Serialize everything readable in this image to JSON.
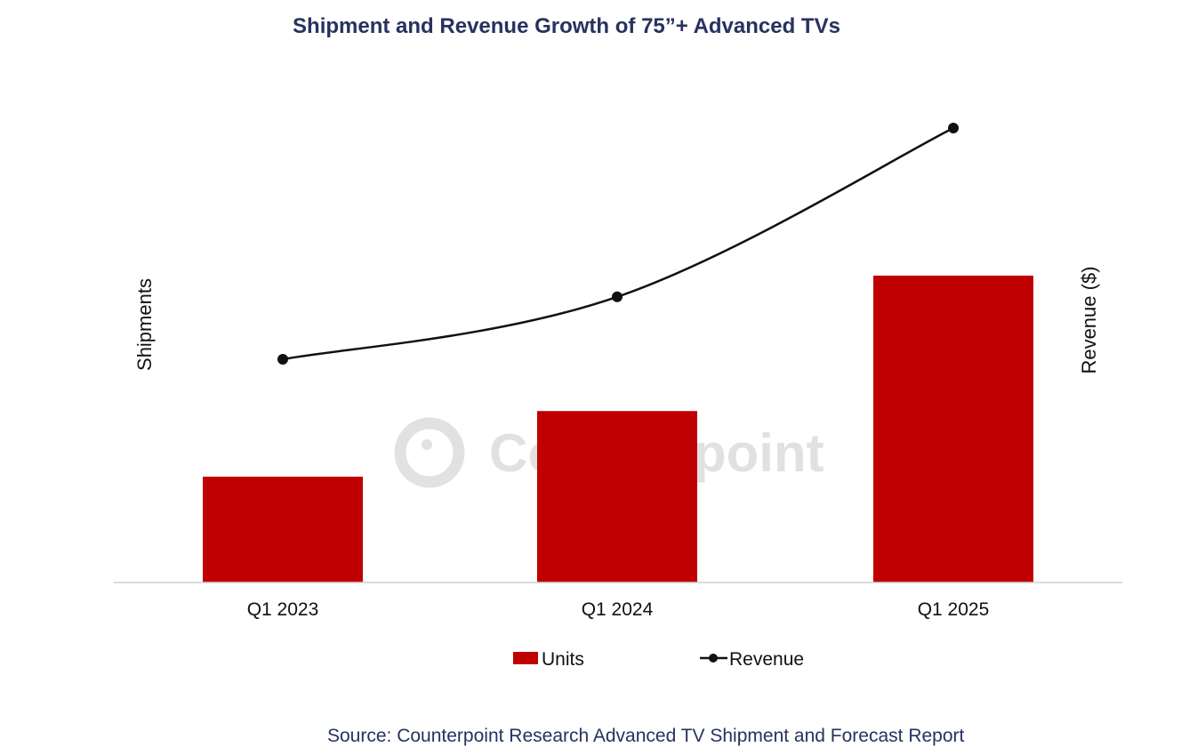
{
  "chart_data": {
    "type": "bar",
    "title": "Shipment and Revenue Growth of 75”+ Advanced TVs",
    "ylabel": "Shipments",
    "y2label": "Revenue  ($)",
    "categories": [
      "Q1 2023",
      "Q1 2024",
      "Q1 2025"
    ],
    "series": [
      {
        "name": "Units",
        "kind": "bar",
        "axis": "left",
        "values": [
          1,
          1.62,
          2.9
        ]
      },
      {
        "name": "Revenue",
        "kind": "line",
        "axis": "right",
        "values": [
          1,
          1.27,
          2.0
        ]
      }
    ],
    "relative_scale": true,
    "colors": {
      "Units": "#c00000",
      "Revenue": "#111111"
    },
    "legend": "bottom",
    "grid": false,
    "watermark": "Counterpoint",
    "source": "Source: Counterpoint Research Advanced TV Shipment and Forecast Report"
  }
}
